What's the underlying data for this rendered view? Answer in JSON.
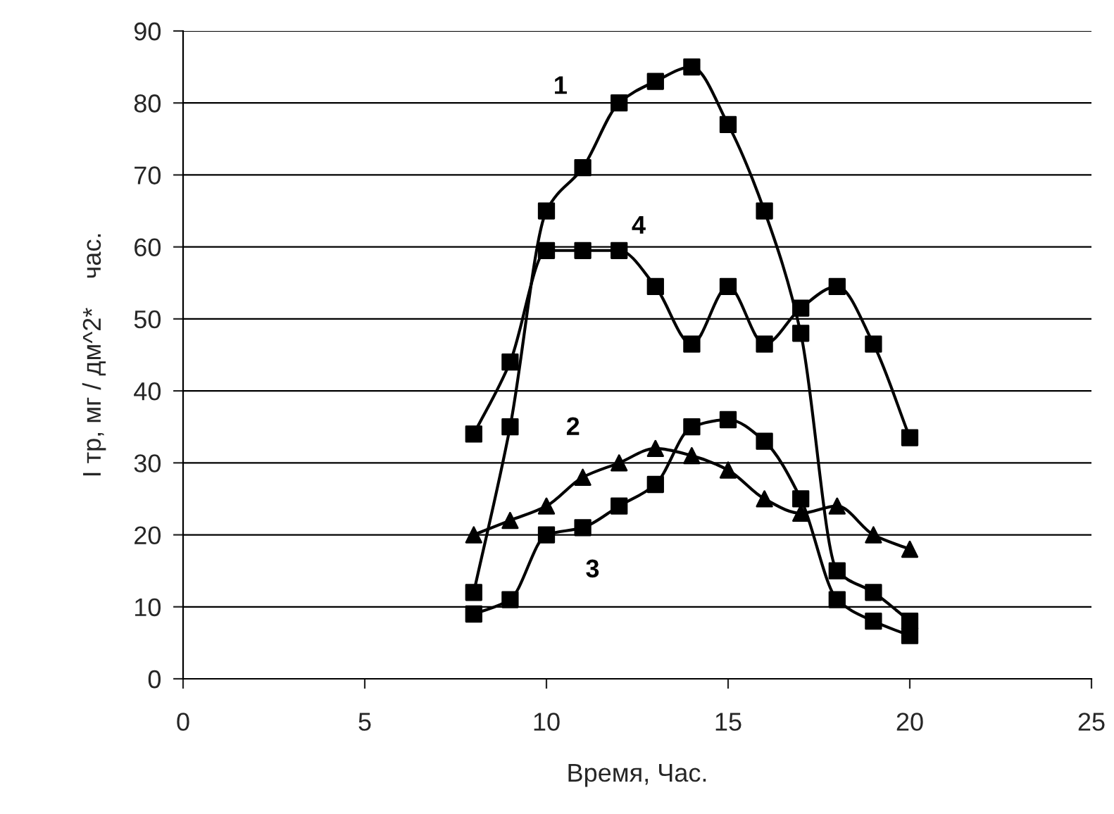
{
  "chart_data": {
    "type": "line",
    "xlabel": "Время, Час.",
    "ylabel": "I тр, мг / дм^2*    час.",
    "xlim": [
      0,
      25
    ],
    "xticks": [
      0,
      5,
      10,
      15,
      20,
      25
    ],
    "ylim": [
      0,
      90
    ],
    "yticks": [
      0,
      10,
      20,
      30,
      40,
      50,
      60,
      70,
      80,
      90
    ],
    "grid": "y",
    "x": [
      8,
      9,
      10,
      11,
      12,
      13,
      14,
      15,
      16,
      17,
      18,
      19,
      20
    ],
    "series": [
      {
        "name": "1",
        "color": "#000000",
        "marker": "square",
        "values": [
          12,
          35,
          65,
          71,
          80,
          83,
          85,
          77,
          65,
          48,
          15,
          12,
          8
        ]
      },
      {
        "name": "2",
        "color": "#000000",
        "marker": "triangle",
        "values": [
          20,
          22,
          24,
          28,
          30,
          32,
          31,
          29,
          25,
          23,
          24,
          20,
          18
        ]
      },
      {
        "name": "3",
        "color": "#000000",
        "marker": "square",
        "values": [
          9,
          11,
          20,
          21,
          24,
          27,
          35,
          36,
          33,
          25,
          11,
          8,
          6
        ]
      },
      {
        "name": "4",
        "color": "#000000",
        "marker": "square",
        "values": [
          34,
          44,
          59.5,
          59.5,
          59.5,
          54.5,
          46.5,
          54.5,
          46.5,
          51.5,
          54.5,
          46.5,
          33.5
        ]
      }
    ]
  }
}
